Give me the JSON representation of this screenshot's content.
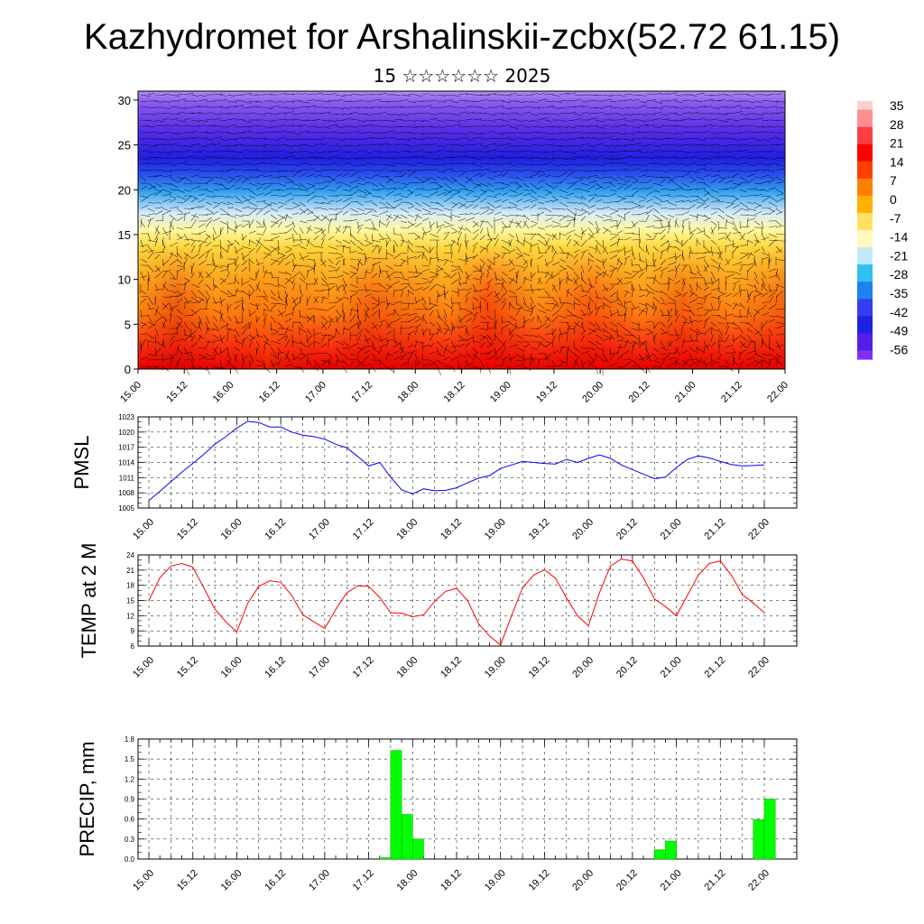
{
  "title": "Kazhydromet for Arshalinskii-zcbx(52.72 61.15)",
  "subtitle": "15 ☆☆☆☆☆☆ 2025",
  "time_labels": [
    "15.00",
    "15.12",
    "16.00",
    "16.12",
    "17.00",
    "17.12",
    "18.00",
    "18.12",
    "19.00",
    "19.12",
    "20.00",
    "20.12",
    "21.00",
    "21.12",
    "22.00"
  ],
  "chart_data": [
    {
      "type": "heatmap",
      "name": "cross-section",
      "x_ticks": [
        "15.00",
        "15.12",
        "16.00",
        "16.12",
        "17.00",
        "17.12",
        "18.00",
        "18.12",
        "19.00",
        "19.12",
        "20.00",
        "20.12",
        "21.00",
        "21.12",
        "22.00"
      ],
      "y_ticks": [
        "0",
        "5",
        "10",
        "15",
        "20",
        "25",
        "30"
      ],
      "ylim": [
        0,
        31
      ],
      "colorbar_labels": [
        "35",
        "28",
        "21",
        "14",
        "7",
        "0",
        "-7",
        "-14",
        "-21",
        "-28",
        "-35",
        "-42",
        "-49",
        "-56"
      ],
      "colorbar_range": [
        -63,
        42
      ]
    },
    {
      "type": "line",
      "ylabel": "PMSL",
      "ylim": [
        1005,
        1023
      ],
      "y_ticks": [
        "1005",
        "1008",
        "1011",
        "1014",
        "1017",
        "1020",
        "1023"
      ],
      "color": "#0000ff",
      "x": [
        0,
        3,
        6,
        9,
        12,
        15,
        18,
        21,
        24,
        27,
        30,
        33,
        36,
        39,
        42,
        45,
        48,
        51,
        54,
        57,
        60,
        63,
        66,
        69,
        72,
        75,
        78,
        81,
        84,
        87,
        90,
        93,
        96,
        99,
        102,
        105,
        108,
        111,
        114,
        117,
        120,
        123,
        126,
        129,
        132,
        135,
        138,
        141,
        144,
        147,
        150,
        153,
        156,
        159,
        162,
        165,
        168
      ],
      "values": [
        1006.5,
        1008.3,
        1010.2,
        1012.1,
        1013.8,
        1015.6,
        1017.6,
        1019.1,
        1020.8,
        1022.1,
        1021.9,
        1021.0,
        1021.0,
        1020.0,
        1019.4,
        1019.1,
        1018.6,
        1017.6,
        1016.9,
        1015.2,
        1013.3,
        1014.0,
        1011.1,
        1008.6,
        1007.8,
        1008.8,
        1008.4,
        1008.5,
        1009.0,
        1010.0,
        1010.9,
        1011.4,
        1012.8,
        1013.5,
        1014.2,
        1014.0,
        1013.8,
        1013.7,
        1014.6,
        1014.0,
        1014.8,
        1015.5,
        1014.8,
        1013.5,
        1012.6,
        1011.7,
        1010.8,
        1011.1,
        1013.0,
        1014.6,
        1015.3,
        1014.9,
        1014.2,
        1013.6,
        1013.3,
        1013.4,
        1013.5
      ]
    },
    {
      "type": "line",
      "ylabel": "TEMP at 2 M",
      "ylim": [
        6,
        24
      ],
      "y_ticks": [
        "6",
        "9",
        "12",
        "15",
        "18",
        "21",
        "24"
      ],
      "color": "#ff0000",
      "x": [
        0,
        3,
        6,
        9,
        12,
        15,
        18,
        21,
        24,
        27,
        30,
        33,
        36,
        39,
        42,
        45,
        48,
        51,
        54,
        57,
        60,
        63,
        66,
        69,
        72,
        75,
        78,
        81,
        84,
        87,
        90,
        93,
        96,
        99,
        102,
        105,
        108,
        111,
        114,
        117,
        120,
        123,
        126,
        129,
        132,
        135,
        138,
        141,
        144,
        147,
        150,
        153,
        156,
        159,
        162,
        165,
        168
      ],
      "values": [
        15.0,
        19.5,
        21.8,
        22.3,
        21.6,
        17.5,
        13.3,
        10.8,
        8.8,
        14.5,
        17.8,
        18.9,
        18.6,
        16.0,
        12.2,
        10.8,
        9.5,
        13.2,
        16.5,
        17.9,
        17.8,
        15.6,
        12.6,
        12.5,
        11.8,
        12.2,
        14.8,
        16.8,
        17.4,
        15.0,
        10.4,
        8.0,
        6.2,
        12.0,
        17.5,
        20.0,
        21.1,
        19.4,
        15.5,
        12.0,
        10.0,
        16.5,
        21.8,
        23.2,
        22.8,
        19.5,
        15.3,
        13.8,
        12.0,
        16.0,
        20.0,
        22.3,
        22.8,
        20.0,
        16.2,
        14.5,
        12.6
      ]
    },
    {
      "type": "bar",
      "ylabel": "PRECIP, mm",
      "ylim": [
        0,
        1.8
      ],
      "y_ticks": [
        "0.0",
        "0.3",
        "0.6",
        "0.9",
        "1.2",
        "1.5",
        "1.8"
      ],
      "color": "#00ff00",
      "bars": [
        {
          "x_start": 63,
          "x_end": 66,
          "value": 0.02
        },
        {
          "x_start": 66,
          "x_end": 69,
          "value": 1.63
        },
        {
          "x_start": 69,
          "x_end": 72,
          "value": 0.67
        },
        {
          "x_start": 72,
          "x_end": 75,
          "value": 0.3
        },
        {
          "x_start": 138,
          "x_end": 141,
          "value": 0.14
        },
        {
          "x_start": 141,
          "x_end": 144,
          "value": 0.27
        },
        {
          "x_start": 165,
          "x_end": 168,
          "value": 0.59
        },
        {
          "x_start": 168,
          "x_end": 171,
          "value": 0.9
        }
      ]
    }
  ]
}
